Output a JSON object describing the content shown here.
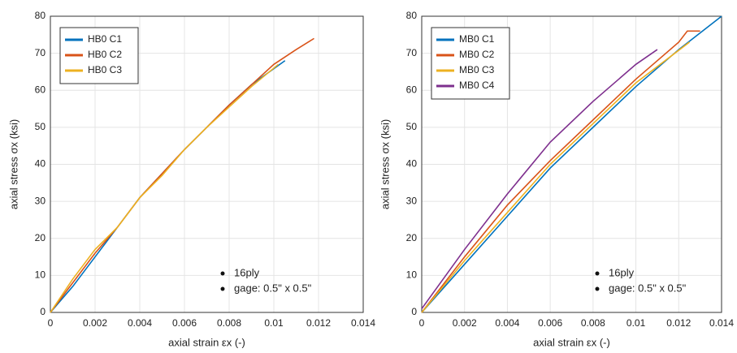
{
  "chart_data": [
    {
      "type": "line",
      "xlabel": "axial strain εx (-)",
      "ylabel": "axial stress σx (ksi)",
      "xlim": [
        0,
        0.014
      ],
      "ylim": [
        0,
        80
      ],
      "xticks": [
        0,
        0.002,
        0.004,
        0.006,
        0.008,
        0.01,
        0.012,
        0.014
      ],
      "yticks": [
        0,
        10,
        20,
        30,
        40,
        50,
        60,
        70,
        80
      ],
      "grid": true,
      "legend": "upper left",
      "series": [
        {
          "name": "HB0 C1",
          "color": "#0072bd",
          "x": [
            0,
            0.001,
            0.002,
            0.003,
            0.004,
            0.005,
            0.006,
            0.007,
            0.008,
            0.009,
            0.0105
          ],
          "values": [
            0,
            7,
            15,
            23,
            31,
            37.5,
            44,
            50,
            56,
            61.5,
            68
          ]
        },
        {
          "name": "HB0 C2",
          "color": "#d95319",
          "x": [
            0,
            0.001,
            0.002,
            0.003,
            0.004,
            0.005,
            0.006,
            0.007,
            0.008,
            0.009,
            0.01,
            0.011,
            0.0118
          ],
          "values": [
            0,
            8,
            16,
            23,
            31,
            37.5,
            44,
            50,
            56,
            61.5,
            67,
            71,
            74
          ]
        },
        {
          "name": "HB0 C3",
          "color": "#edb120",
          "x": [
            0,
            0.001,
            0.002,
            0.003,
            0.004,
            0.005,
            0.006,
            0.007,
            0.008,
            0.009,
            0.0102
          ],
          "values": [
            0,
            9,
            17,
            23,
            31,
            37,
            44,
            50,
            55.5,
            61,
            67
          ]
        }
      ],
      "annotations": [
        "16ply",
        "gage: 0.5\" x 0.5\""
      ]
    },
    {
      "type": "line",
      "xlabel": "axial strain εx (-)",
      "ylabel": "axial stress σx (ksi)",
      "xlim": [
        0,
        0.014
      ],
      "ylim": [
        0,
        80
      ],
      "xticks": [
        0,
        0.002,
        0.004,
        0.006,
        0.008,
        0.01,
        0.012,
        0.014
      ],
      "yticks": [
        0,
        10,
        20,
        30,
        40,
        50,
        60,
        70,
        80
      ],
      "grid": true,
      "legend": "upper left",
      "series": [
        {
          "name": "MB0 C1",
          "color": "#0072bd",
          "x": [
            0,
            0.002,
            0.004,
            0.006,
            0.008,
            0.01,
            0.012,
            0.014
          ],
          "values": [
            0,
            13,
            26,
            39,
            50,
            61,
            71,
            80
          ]
        },
        {
          "name": "MB0 C2",
          "color": "#d95319",
          "x": [
            0,
            0.002,
            0.004,
            0.006,
            0.008,
            0.01,
            0.012,
            0.0124,
            0.013
          ],
          "values": [
            0,
            15,
            29,
            41,
            52,
            63,
            73,
            76,
            76
          ]
        },
        {
          "name": "MB0 C3",
          "color": "#edb120",
          "x": [
            0,
            0.002,
            0.004,
            0.006,
            0.008,
            0.01,
            0.0125
          ],
          "values": [
            0,
            14,
            27,
            40,
            51,
            62,
            73
          ]
        },
        {
          "name": "MB0 C4",
          "color": "#7e2f8e",
          "x": [
            0,
            0.002,
            0.004,
            0.006,
            0.008,
            0.01,
            0.011
          ],
          "values": [
            1,
            17,
            32,
            46,
            57,
            67,
            71
          ]
        }
      ],
      "annotations": [
        "16ply",
        "gage: 0.5\" x 0.5\""
      ]
    }
  ]
}
